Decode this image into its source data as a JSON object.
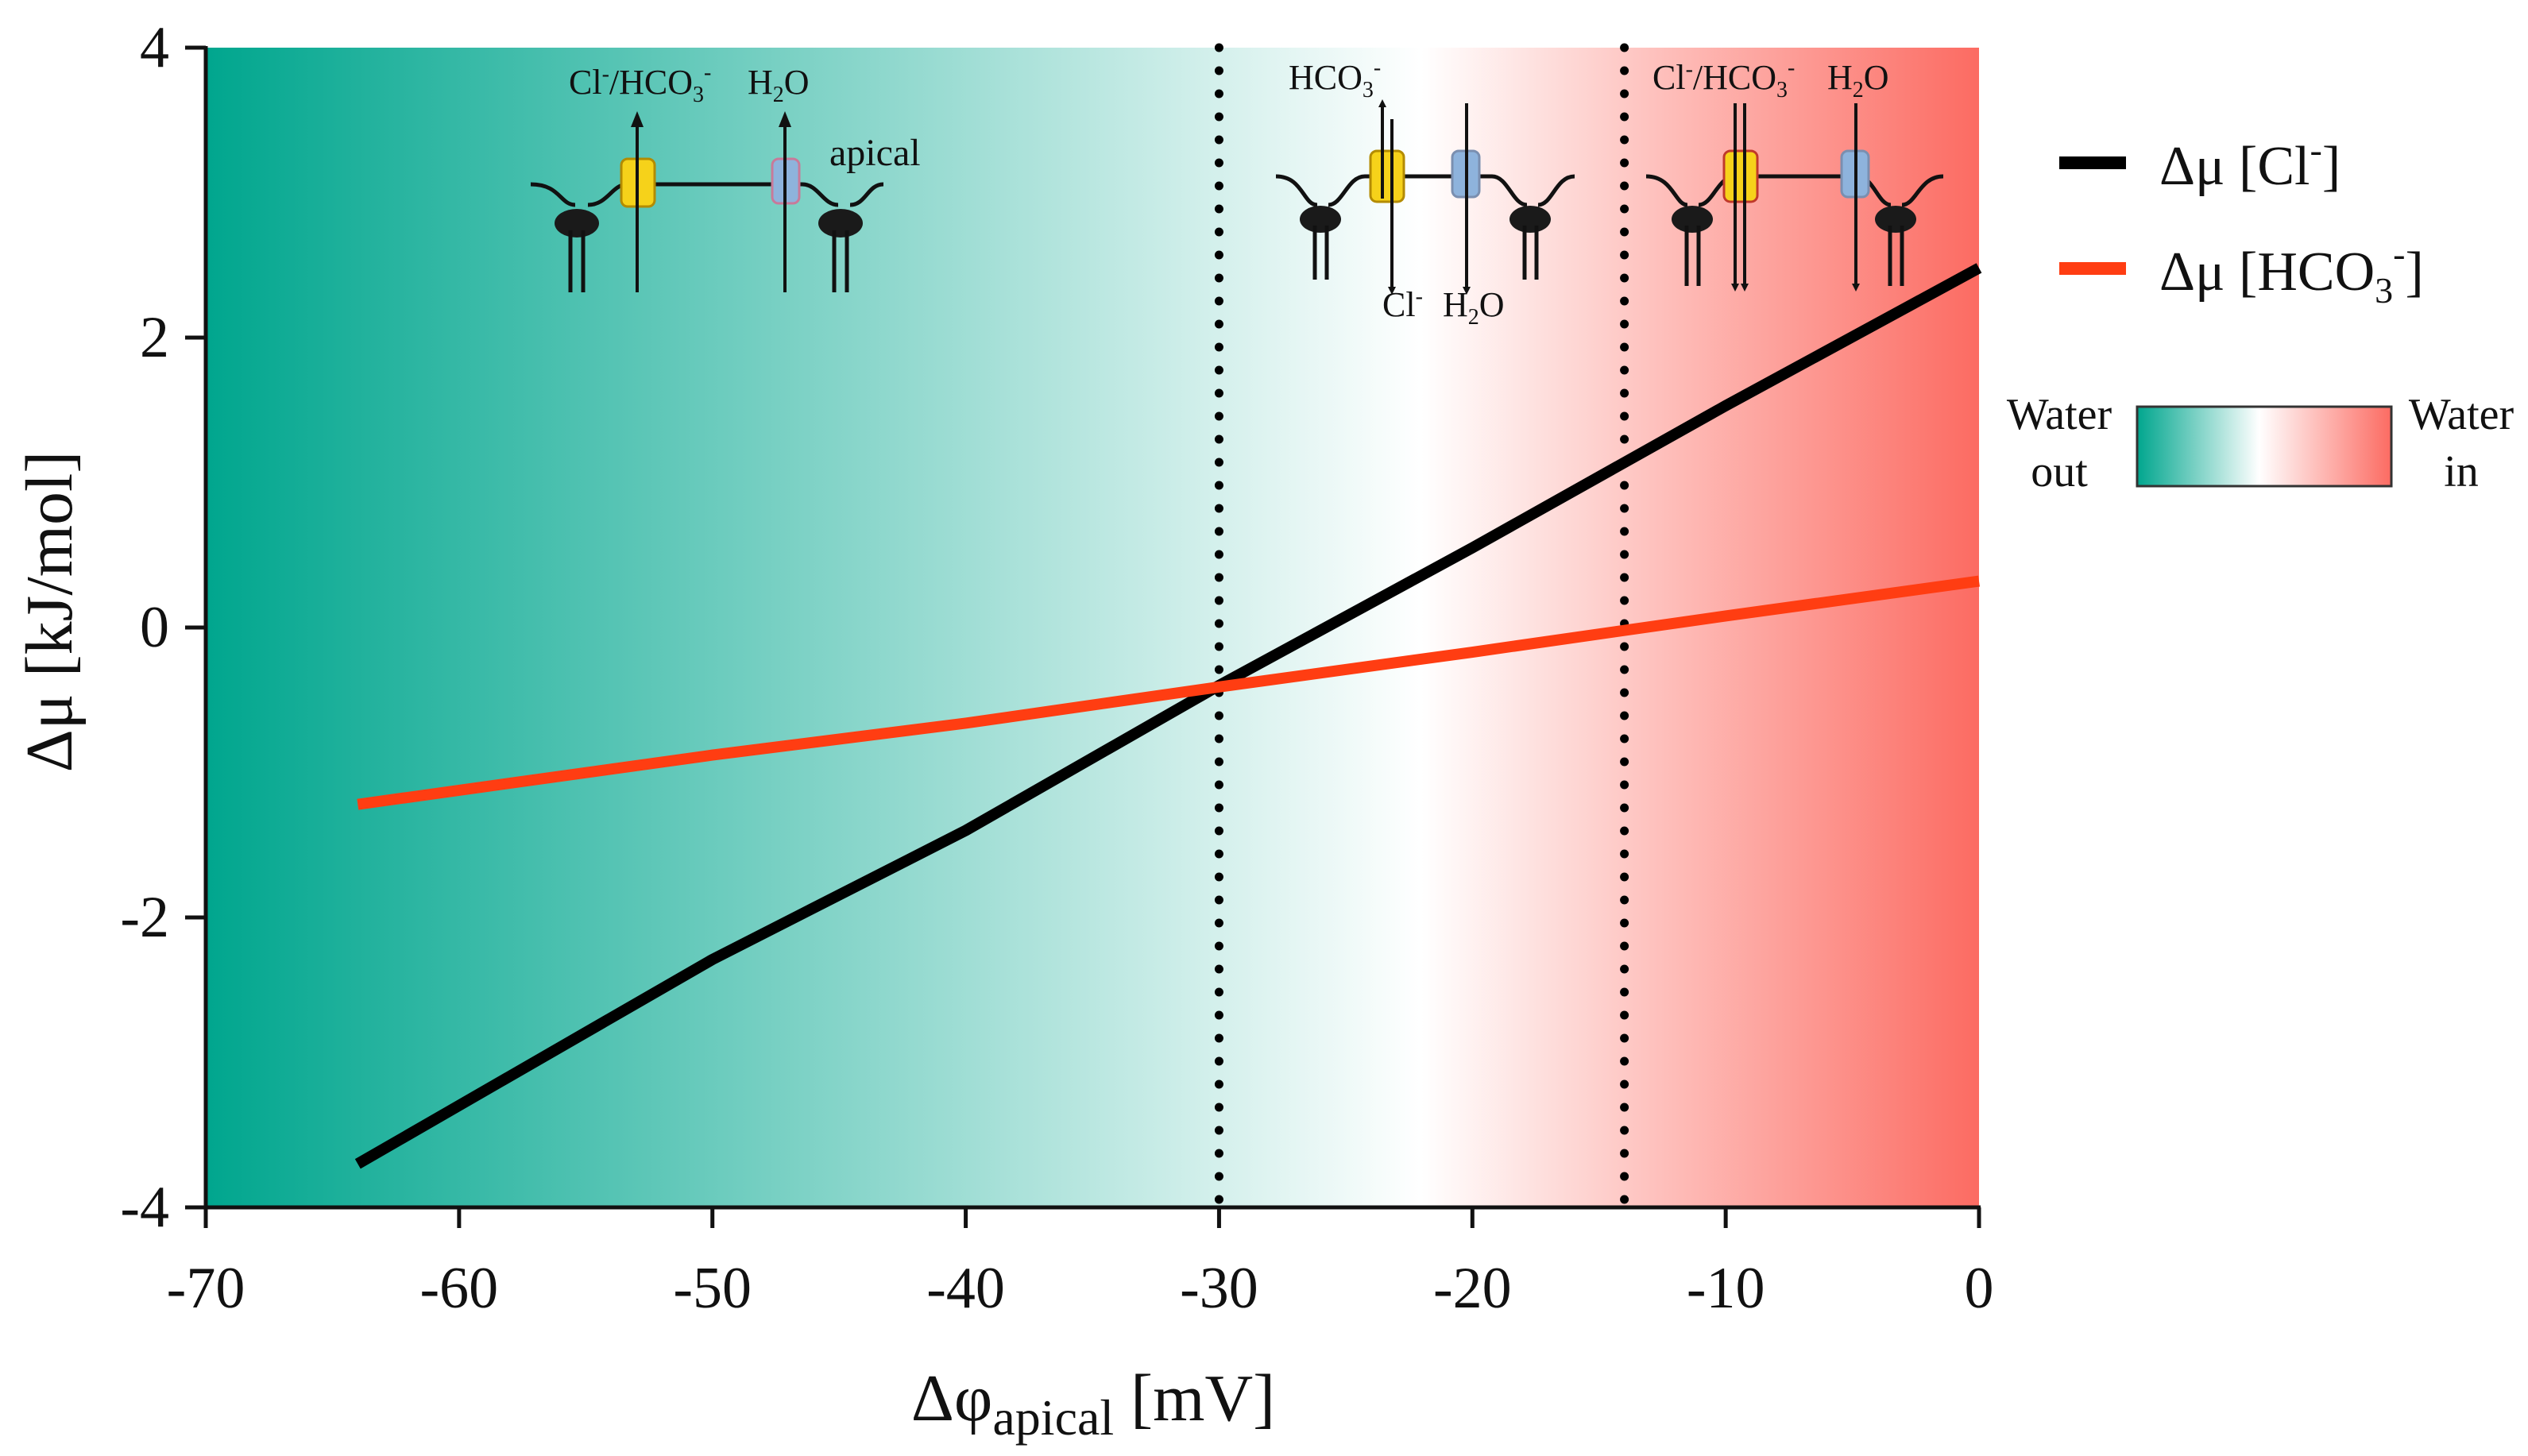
{
  "chart_data": {
    "type": "line",
    "xlabel": {
      "base": "Δφ",
      "sub": "apical",
      "unit": " [mV]"
    },
    "ylabel": "Δμ [kJ/mol]",
    "xlim": [
      -70,
      0
    ],
    "ylim": [
      -4,
      4
    ],
    "x_ticks": [
      "-70",
      "-60",
      "-50",
      "-40",
      "-30",
      "-20",
      "-10",
      "0"
    ],
    "y_ticks": [
      "-4",
      "-2",
      "0",
      "2",
      "4"
    ],
    "series": [
      {
        "name": "Cl-",
        "legend": {
          "prefix": "Δμ [Cl",
          "sup": "-",
          "suffix": "]"
        },
        "color": "#000000",
        "x": [
          -64,
          -50,
          -40,
          -30,
          -20,
          -10,
          0
        ],
        "y": [
          -3.7,
          -2.29,
          -1.4,
          -0.4,
          0.55,
          1.53,
          2.48
        ]
      },
      {
        "name": "HCO3-",
        "legend": {
          "prefix": "Δμ [HCO",
          "sub": "3",
          "sup": "-",
          "suffix": "]"
        },
        "color": "#ff3d12",
        "x": [
          -64,
          -50,
          -40,
          -30,
          -20,
          -10,
          0
        ],
        "y": [
          -1.22,
          -0.88,
          -0.66,
          -0.41,
          -0.17,
          0.08,
          0.32
        ]
      }
    ],
    "vlines": [
      {
        "x": -30,
        "style": "dotted",
        "color": "#000000"
      },
      {
        "x": -14,
        "style": "dotted",
        "color": "#000000"
      }
    ],
    "background_gradient": {
      "left_color": "#00a68e",
      "mid_color": "#ffffff",
      "right_color": "#fc6b62",
      "mid_x": -22
    },
    "colorbar": {
      "left_label": [
        "Water",
        "out"
      ],
      "right_label": [
        "Water",
        "in"
      ]
    },
    "insets": [
      {
        "name": "left",
        "arrows": "out",
        "labels": [
          "Cl",
          "-",
          "/HCO",
          "3",
          "-",
          "H",
          "2",
          "O"
        ],
        "tag": "apical"
      },
      {
        "name": "middle",
        "labels": [
          "HCO",
          "3",
          "-",
          "Cl",
          "-",
          "H",
          "2",
          "O"
        ]
      },
      {
        "name": "right",
        "labels": [
          "Cl",
          "-",
          "/HCO",
          "3",
          "-",
          "H",
          "2",
          "O"
        ]
      }
    ],
    "legend_position": "right",
    "grid": false
  },
  "colors": {
    "channel_yellow": "#f6d21a",
    "channel_blue": "#8eb3dc",
    "pump": "#1a1a1a"
  }
}
